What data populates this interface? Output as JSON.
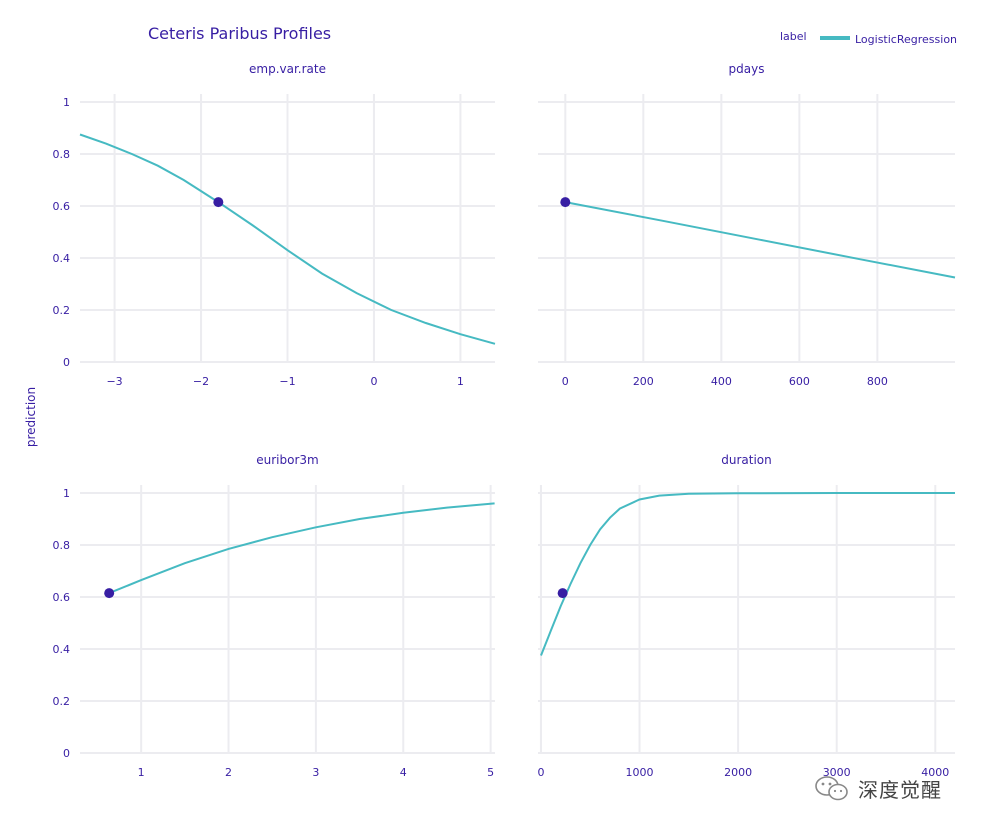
{
  "title": "Ceteris Paribus Profiles",
  "ylabel": "prediction",
  "legend": {
    "title": "label",
    "entries": [
      {
        "name": "LogisticRegression",
        "color": "#46bac2"
      }
    ]
  },
  "colors": {
    "line": "#46bac2",
    "point": "#371ea3",
    "text": "#371ea3",
    "grid": "#ececf0"
  },
  "watermark": {
    "text": "深度觉醒",
    "icon": "wechat-icon"
  },
  "chart_data": [
    {
      "type": "line",
      "title": "emp.var.rate",
      "ylabel": "prediction",
      "xlim": [
        -3.4,
        1.4
      ],
      "ylim": [
        0,
        1
      ],
      "xticks": [
        -3,
        -2,
        -1,
        0,
        1
      ],
      "xtick_labels": [
        "−3",
        "−2",
        "−1",
        "0",
        "1"
      ],
      "yticks": [
        0,
        0.2,
        0.4,
        0.6,
        0.8,
        1
      ],
      "ytick_labels": [
        "0",
        "0.2",
        "0.4",
        "0.6",
        "0.8",
        "1"
      ],
      "series": [
        {
          "name": "LogisticRegression",
          "x": [
            -3.4,
            -3.1,
            -2.8,
            -2.5,
            -2.2,
            -1.8,
            -1.4,
            -1.0,
            -0.6,
            -0.2,
            0.2,
            0.6,
            1.0,
            1.4
          ],
          "y": [
            0.875,
            0.84,
            0.8,
            0.755,
            0.7,
            0.615,
            0.525,
            0.43,
            0.34,
            0.265,
            0.2,
            0.15,
            0.107,
            0.07
          ]
        }
      ],
      "observation": {
        "x": -1.8,
        "y": 0.615
      }
    },
    {
      "type": "line",
      "title": "pdays",
      "xlim": [
        -70,
        999
      ],
      "ylim": [
        0,
        1
      ],
      "xticks": [
        0,
        200,
        400,
        600,
        800
      ],
      "xtick_labels": [
        "0",
        "200",
        "400",
        "600",
        "800"
      ],
      "yticks": [
        0,
        0.2,
        0.4,
        0.6,
        0.8,
        1
      ],
      "series": [
        {
          "name": "LogisticRegression",
          "x": [
            0,
            250,
            500,
            750,
            999
          ],
          "y": [
            0.615,
            0.543,
            0.47,
            0.397,
            0.325
          ]
        }
      ],
      "observation": {
        "x": 0,
        "y": 0.615
      }
    },
    {
      "type": "line",
      "title": "euribor3m",
      "ylabel": "prediction",
      "xlim": [
        0.3,
        5.05
      ],
      "ylim": [
        0,
        1
      ],
      "xticks": [
        1,
        2,
        3,
        4,
        5
      ],
      "xtick_labels": [
        "1",
        "2",
        "3",
        "4",
        "5"
      ],
      "yticks": [
        0,
        0.2,
        0.4,
        0.6,
        0.8,
        1
      ],
      "ytick_labels": [
        "0",
        "0.2",
        "0.4",
        "0.6",
        "0.8",
        "1"
      ],
      "series": [
        {
          "name": "LogisticRegression",
          "x": [
            0.634,
            1.0,
            1.5,
            2.0,
            2.5,
            3.0,
            3.5,
            4.0,
            4.5,
            5.045
          ],
          "y": [
            0.615,
            0.665,
            0.73,
            0.785,
            0.83,
            0.868,
            0.9,
            0.924,
            0.944,
            0.96
          ]
        }
      ],
      "observation": {
        "x": 0.634,
        "y": 0.615
      }
    },
    {
      "type": "line",
      "title": "duration",
      "xlim": [
        -30,
        4200
      ],
      "ylim": [
        0,
        1
      ],
      "xticks": [
        0,
        1000,
        2000,
        3000,
        4000
      ],
      "xtick_labels": [
        "0",
        "1000",
        "2000",
        "3000",
        "4000"
      ],
      "yticks": [
        0,
        0.2,
        0.4,
        0.6,
        0.8,
        1
      ],
      "series": [
        {
          "name": "LogisticRegression",
          "x": [
            0,
            100,
            200,
            300,
            400,
            500,
            600,
            700,
            800,
            1000,
            1200,
            1500,
            2000,
            3000,
            4200
          ],
          "y": [
            0.375,
            0.47,
            0.565,
            0.65,
            0.73,
            0.8,
            0.86,
            0.905,
            0.94,
            0.975,
            0.99,
            0.997,
            0.999,
            1.0,
            1.0
          ]
        }
      ],
      "observation": {
        "x": 220,
        "y": 0.615
      }
    }
  ]
}
